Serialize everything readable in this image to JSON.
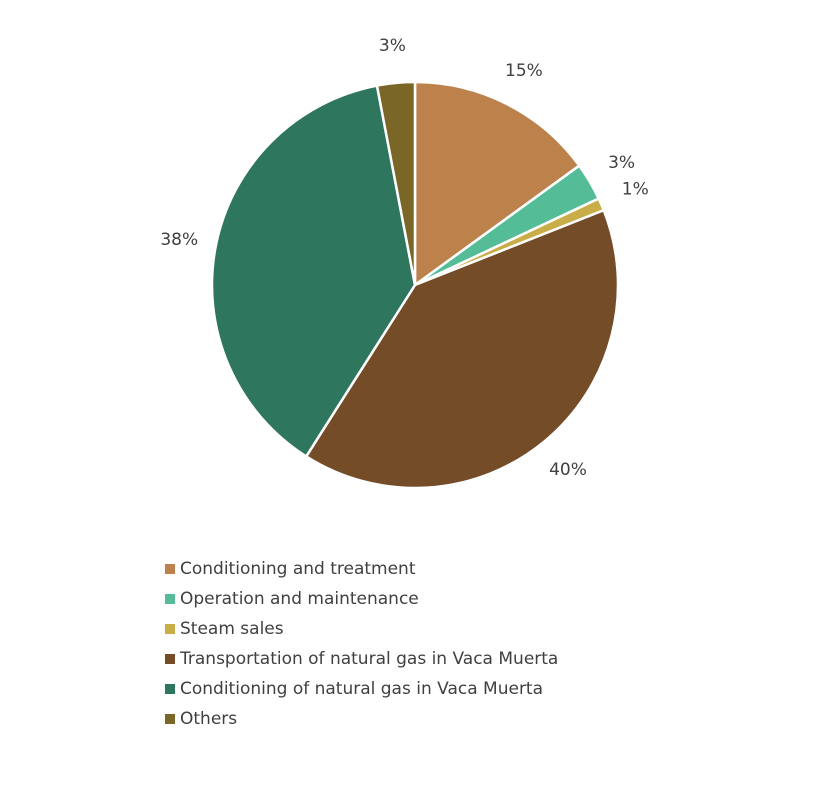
{
  "chart_data": {
    "type": "pie",
    "categories": [
      "Conditioning and treatment",
      "Operation and maintenance",
      "Steam sales",
      "Transportation of natural gas in Vaca Muerta",
      "Conditioning of natural gas in Vaca Muerta",
      "Others"
    ],
    "values": [
      15,
      3,
      1,
      40,
      38,
      3
    ],
    "value_labels": [
      "15%",
      "3%",
      "1%",
      "40%",
      "38%",
      "3%"
    ],
    "colors": [
      "#bd814b",
      "#54bd98",
      "#c8ad48",
      "#744c28",
      "#2e765e",
      "#7a6728"
    ]
  }
}
